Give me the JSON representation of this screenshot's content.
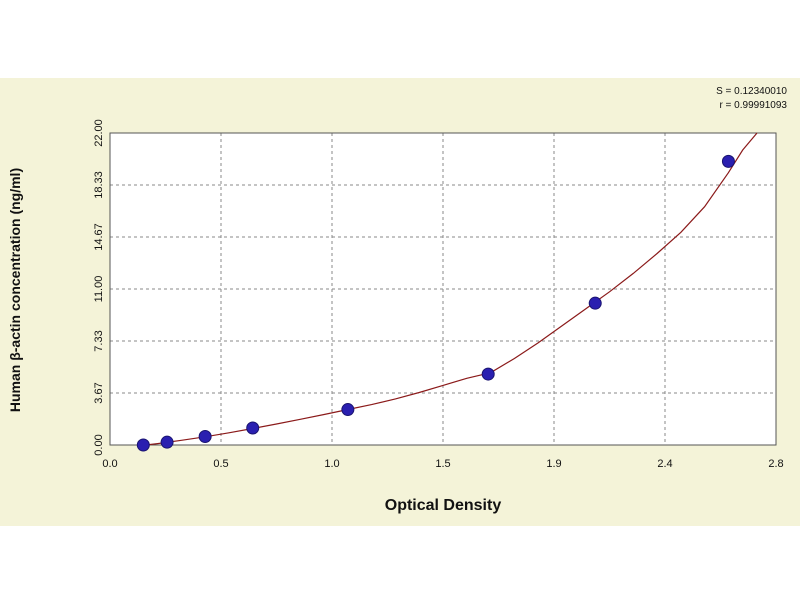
{
  "chart_data": {
    "type": "scatter",
    "xlabel": "Optical Density",
    "ylabel": "Human β-actin concentration (ng/ml)",
    "xlim": [
      0.0,
      2.8
    ],
    "ylim": [
      0.0,
      22.0
    ],
    "x_ticks": [
      "0.0",
      "0.5",
      "1.0",
      "1.5",
      "1.9",
      "2.4",
      "2.8"
    ],
    "y_ticks": [
      "0.00",
      "3.67",
      "7.33",
      "11.00",
      "14.67",
      "18.33",
      "22.00"
    ],
    "grid": true,
    "fit_statistics": [
      "S = 0.12340010",
      "r = 0.99991093"
    ],
    "series": [
      {
        "marker_color": "#2a1fb0",
        "curve_color": "#8b1a1a",
        "points": [
          {
            "x": 0.14,
            "y": 0.0
          },
          {
            "x": 0.24,
            "y": 0.2
          },
          {
            "x": 0.4,
            "y": 0.6
          },
          {
            "x": 0.6,
            "y": 1.2
          },
          {
            "x": 1.0,
            "y": 2.5
          },
          {
            "x": 1.59,
            "y": 5.0
          },
          {
            "x": 2.04,
            "y": 10.0
          },
          {
            "x": 2.6,
            "y": 20.0
          }
        ],
        "fit_curve": [
          {
            "x": 0.1,
            "y": -0.1
          },
          {
            "x": 0.2,
            "y": 0.1
          },
          {
            "x": 0.3,
            "y": 0.33
          },
          {
            "x": 0.4,
            "y": 0.58
          },
          {
            "x": 0.5,
            "y": 0.86
          },
          {
            "x": 0.6,
            "y": 1.16
          },
          {
            "x": 0.7,
            "y": 1.48
          },
          {
            "x": 0.8,
            "y": 1.81
          },
          {
            "x": 0.9,
            "y": 2.15
          },
          {
            "x": 1.0,
            "y": 2.5
          },
          {
            "x": 1.1,
            "y": 2.85
          },
          {
            "x": 1.2,
            "y": 3.25
          },
          {
            "x": 1.3,
            "y": 3.7
          },
          {
            "x": 1.4,
            "y": 4.2
          },
          {
            "x": 1.5,
            "y": 4.7
          },
          {
            "x": 1.6,
            "y": 5.1
          },
          {
            "x": 1.7,
            "y": 6.1
          },
          {
            "x": 1.8,
            "y": 7.2
          },
          {
            "x": 1.9,
            "y": 8.4
          },
          {
            "x": 2.0,
            "y": 9.6
          },
          {
            "x": 2.1,
            "y": 10.8
          },
          {
            "x": 2.2,
            "y": 12.1
          },
          {
            "x": 2.3,
            "y": 13.5
          },
          {
            "x": 2.4,
            "y": 15.0
          },
          {
            "x": 2.5,
            "y": 16.8
          },
          {
            "x": 2.6,
            "y": 19.2
          },
          {
            "x": 2.66,
            "y": 20.8
          },
          {
            "x": 2.72,
            "y": 22.0
          }
        ]
      }
    ]
  }
}
